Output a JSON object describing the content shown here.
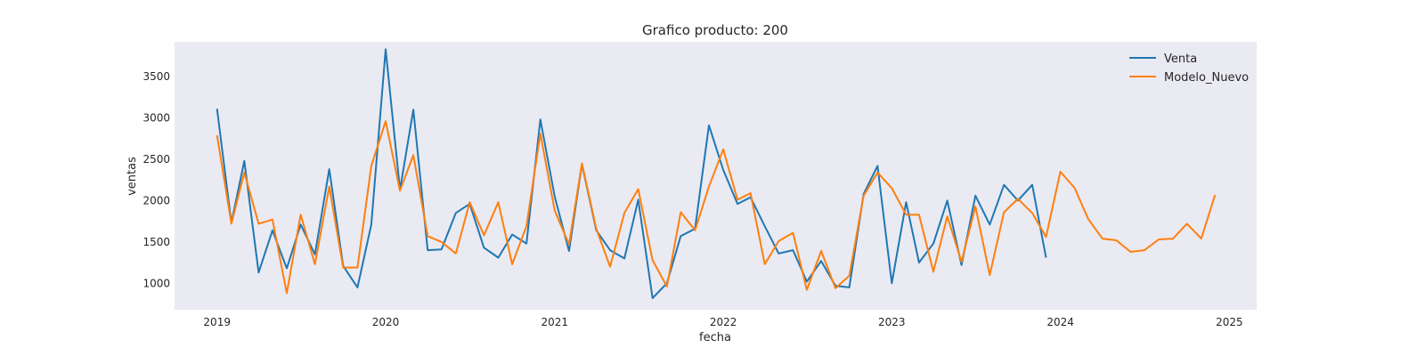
{
  "chart_data": {
    "type": "line",
    "title": "Grafico producto: 200",
    "xlabel": "fecha",
    "ylabel": "ventas",
    "xlim": [
      "2018-10-01",
      "2025-03-01"
    ],
    "ylim": [
      680,
      3920
    ],
    "grid": false,
    "legend_position": "top-right",
    "x_ticks": [
      {
        "label": "2019",
        "date": "2019-01-01"
      },
      {
        "label": "2020",
        "date": "2020-01-01"
      },
      {
        "label": "2021",
        "date": "2021-01-01"
      },
      {
        "label": "2022",
        "date": "2022-01-01"
      },
      {
        "label": "2023",
        "date": "2023-01-01"
      },
      {
        "label": "2024",
        "date": "2024-01-01"
      },
      {
        "label": "2025",
        "date": "2025-01-01"
      }
    ],
    "y_ticks": [
      1000,
      1500,
      2000,
      2500,
      3000,
      3500
    ],
    "series": [
      {
        "name": "Venta",
        "color": "#1f77b4",
        "points": [
          [
            "2019-01",
            3110
          ],
          [
            "2019-02",
            1730
          ],
          [
            "2019-03",
            2480
          ],
          [
            "2019-04",
            1130
          ],
          [
            "2019-05",
            1640
          ],
          [
            "2019-06",
            1180
          ],
          [
            "2019-07",
            1710
          ],
          [
            "2019-08",
            1350
          ],
          [
            "2019-09",
            2380
          ],
          [
            "2019-10",
            1210
          ],
          [
            "2019-11",
            950
          ],
          [
            "2019-12",
            1710
          ],
          [
            "2020-01",
            3830
          ],
          [
            "2020-02",
            2130
          ],
          [
            "2020-03",
            3100
          ],
          [
            "2020-04",
            1400
          ],
          [
            "2020-05",
            1410
          ],
          [
            "2020-06",
            1850
          ],
          [
            "2020-07",
            1960
          ],
          [
            "2020-08",
            1430
          ],
          [
            "2020-09",
            1310
          ],
          [
            "2020-10",
            1590
          ],
          [
            "2020-11",
            1480
          ],
          [
            "2020-12",
            2980
          ],
          [
            "2021-01",
            2050
          ],
          [
            "2021-02",
            1390
          ],
          [
            "2021-03",
            2440
          ],
          [
            "2021-04",
            1640
          ],
          [
            "2021-05",
            1400
          ],
          [
            "2021-06",
            1300
          ],
          [
            "2021-07",
            2010
          ],
          [
            "2021-08",
            820
          ],
          [
            "2021-09",
            1000
          ],
          [
            "2021-10",
            1570
          ],
          [
            "2021-11",
            1660
          ],
          [
            "2021-12",
            2910
          ],
          [
            "2022-01",
            2370
          ],
          [
            "2022-02",
            1960
          ],
          [
            "2022-03",
            2040
          ],
          [
            "2022-04",
            1690
          ],
          [
            "2022-05",
            1360
          ],
          [
            "2022-06",
            1400
          ],
          [
            "2022-07",
            1020
          ],
          [
            "2022-08",
            1270
          ],
          [
            "2022-09",
            970
          ],
          [
            "2022-10",
            950
          ],
          [
            "2022-11",
            2080
          ],
          [
            "2022-12",
            2420
          ],
          [
            "2023-01",
            1000
          ],
          [
            "2023-02",
            1980
          ],
          [
            "2023-03",
            1250
          ],
          [
            "2023-04",
            1480
          ],
          [
            "2023-05",
            2000
          ],
          [
            "2023-06",
            1220
          ],
          [
            "2023-07",
            2060
          ],
          [
            "2023-08",
            1710
          ],
          [
            "2023-09",
            2190
          ],
          [
            "2023-10",
            2000
          ],
          [
            "2023-11",
            2190
          ],
          [
            "2023-12",
            1310
          ]
        ]
      },
      {
        "name": "Modelo_Nuevo",
        "color": "#ff7f0e",
        "points": [
          [
            "2019-01",
            2790
          ],
          [
            "2019-02",
            1720
          ],
          [
            "2019-03",
            2340
          ],
          [
            "2019-04",
            1720
          ],
          [
            "2019-05",
            1770
          ],
          [
            "2019-06",
            880
          ],
          [
            "2019-07",
            1830
          ],
          [
            "2019-08",
            1230
          ],
          [
            "2019-09",
            2170
          ],
          [
            "2019-10",
            1190
          ],
          [
            "2019-11",
            1190
          ],
          [
            "2019-12",
            2420
          ],
          [
            "2020-01",
            2960
          ],
          [
            "2020-02",
            2120
          ],
          [
            "2020-03",
            2550
          ],
          [
            "2020-04",
            1570
          ],
          [
            "2020-05",
            1500
          ],
          [
            "2020-06",
            1360
          ],
          [
            "2020-07",
            1980
          ],
          [
            "2020-08",
            1580
          ],
          [
            "2020-09",
            1980
          ],
          [
            "2020-10",
            1230
          ],
          [
            "2020-11",
            1690
          ],
          [
            "2020-12",
            2810
          ],
          [
            "2021-01",
            1880
          ],
          [
            "2021-02",
            1470
          ],
          [
            "2021-03",
            2450
          ],
          [
            "2021-04",
            1660
          ],
          [
            "2021-05",
            1200
          ],
          [
            "2021-06",
            1850
          ],
          [
            "2021-07",
            2140
          ],
          [
            "2021-08",
            1280
          ],
          [
            "2021-09",
            960
          ],
          [
            "2021-10",
            1860
          ],
          [
            "2021-11",
            1640
          ],
          [
            "2021-12",
            2170
          ],
          [
            "2022-01",
            2620
          ],
          [
            "2022-02",
            2010
          ],
          [
            "2022-03",
            2090
          ],
          [
            "2022-04",
            1230
          ],
          [
            "2022-05",
            1510
          ],
          [
            "2022-06",
            1610
          ],
          [
            "2022-07",
            920
          ],
          [
            "2022-08",
            1390
          ],
          [
            "2022-09",
            940
          ],
          [
            "2022-10",
            1090
          ],
          [
            "2022-11",
            2060
          ],
          [
            "2022-12",
            2340
          ],
          [
            "2023-01",
            2150
          ],
          [
            "2023-02",
            1830
          ],
          [
            "2023-03",
            1830
          ],
          [
            "2023-04",
            1140
          ],
          [
            "2023-05",
            1810
          ],
          [
            "2023-06",
            1260
          ],
          [
            "2023-07",
            1930
          ],
          [
            "2023-08",
            1100
          ],
          [
            "2023-09",
            1860
          ],
          [
            "2023-10",
            2020
          ],
          [
            "2023-11",
            1850
          ],
          [
            "2023-12",
            1560
          ],
          [
            "2024-01",
            2350
          ],
          [
            "2024-02",
            2150
          ],
          [
            "2024-03",
            1780
          ],
          [
            "2024-04",
            1540
          ],
          [
            "2024-05",
            1520
          ],
          [
            "2024-06",
            1380
          ],
          [
            "2024-07",
            1400
          ],
          [
            "2024-08",
            1530
          ],
          [
            "2024-09",
            1540
          ],
          [
            "2024-10",
            1720
          ],
          [
            "2024-11",
            1540
          ],
          [
            "2024-12",
            2070
          ]
        ]
      }
    ]
  }
}
